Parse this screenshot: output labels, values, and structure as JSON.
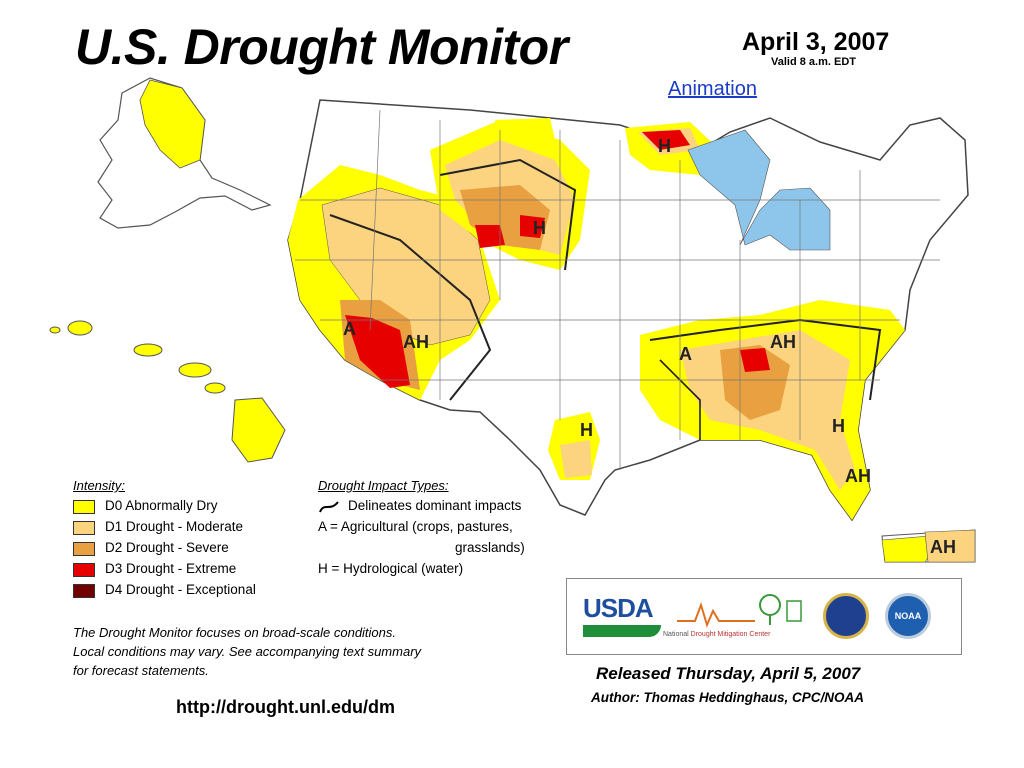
{
  "header": {
    "title": "U.S. Drought Monitor",
    "date": "April 3, 2007",
    "valid": "Valid 8 a.m. EDT",
    "animation_link": "Animation"
  },
  "map_labels": {
    "h": "H",
    "a": "A",
    "ah": "AH"
  },
  "colors": {
    "d0": "#ffff00",
    "d1": "#fcd37f",
    "d2": "#e8a040",
    "d3": "#e60000",
    "d4": "#730000",
    "water": "#8ec5ea"
  },
  "legend": {
    "intensity_title": "Intensity:",
    "items": [
      {
        "label": "D0 Abnormally Dry"
      },
      {
        "label": "D1 Drought - Moderate"
      },
      {
        "label": "D2 Drought - Severe"
      },
      {
        "label": "D3 Drought - Extreme"
      },
      {
        "label": "D4 Drought - Exceptional"
      }
    ],
    "impact_title": "Drought Impact Types:",
    "impact_line1": "Delineates dominant impacts",
    "impact_line2": "A = Agricultural (crops, pastures,",
    "impact_line3": "grasslands)",
    "impact_line4": "H = Hydrological (water)"
  },
  "note": {
    "line1": "The Drought Monitor focuses on broad-scale conditions.",
    "line2": "Local conditions may vary. See accompanying text summary",
    "line3": "for forecast statements."
  },
  "url": "http://drought.unl.edu/dm",
  "logos": {
    "usda": "USDA",
    "ndmc_national": "National",
    "ndmc_name": "Drought Mitigation Center",
    "noaa": "NOAA"
  },
  "footer": {
    "released": "Released Thursday, April 5, 2007",
    "author": "Author: Thomas Heddinghaus, CPC/NOAA"
  }
}
